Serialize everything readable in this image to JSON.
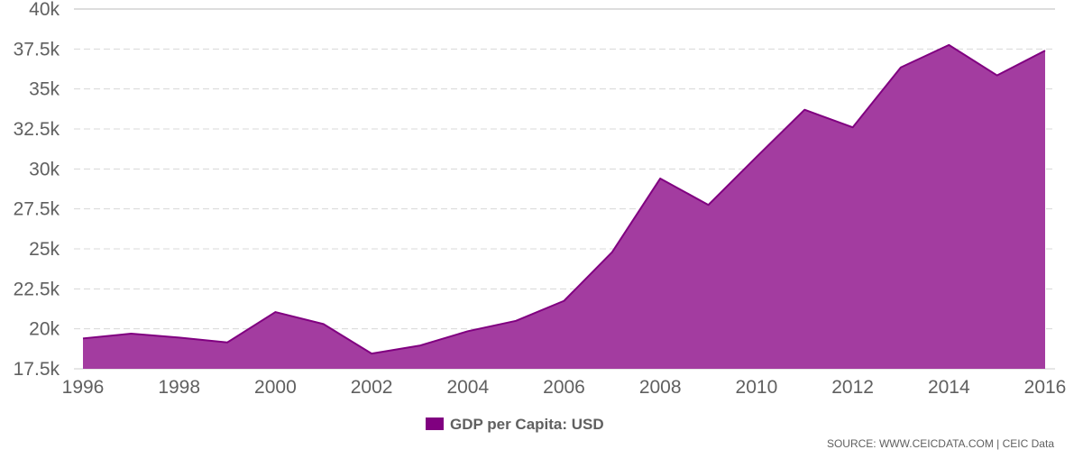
{
  "chart_data": {
    "type": "area",
    "title": "",
    "xlabel": "",
    "ylabel": "",
    "x": [
      1996,
      1997,
      1998,
      1999,
      2000,
      2001,
      2002,
      2003,
      2004,
      2005,
      2006,
      2007,
      2008,
      2009,
      2010,
      2011,
      2012,
      2013,
      2014,
      2015,
      2016
    ],
    "series": [
      {
        "name": "GDP per Capita: USD",
        "color": "#800080",
        "fill_color": "#a33ca0",
        "values": [
          19400,
          19700,
          19450,
          19150,
          21050,
          20300,
          18450,
          18950,
          19850,
          20500,
          21750,
          24800,
          29400,
          27750,
          30750,
          33700,
          32600,
          36350,
          37750,
          35850,
          37400
        ]
      }
    ],
    "ylim": [
      17500,
      40000
    ],
    "xlim": [
      1996,
      2016
    ],
    "y_ticks": [
      17500,
      20000,
      22500,
      25000,
      27500,
      30000,
      32500,
      35000,
      37500,
      40000
    ],
    "y_tick_labels": [
      "17.5k",
      "20k",
      "22.5k",
      "25k",
      "27.5k",
      "30k",
      "32.5k",
      "35k",
      "37.5k",
      "40k"
    ],
    "x_ticks": [
      1996,
      1998,
      2000,
      2002,
      2004,
      2006,
      2008,
      2010,
      2012,
      2014,
      2016
    ],
    "x_tick_labels": [
      "1996",
      "1998",
      "2000",
      "2002",
      "2004",
      "2006",
      "2008",
      "2010",
      "2012",
      "2014",
      "2016"
    ],
    "grid": true,
    "legend": {
      "label": "GDP per Capita: USD",
      "placement": "bottom-center"
    },
    "source": "SOURCE: WWW.CEICDATA.COM | CEIC Data"
  }
}
